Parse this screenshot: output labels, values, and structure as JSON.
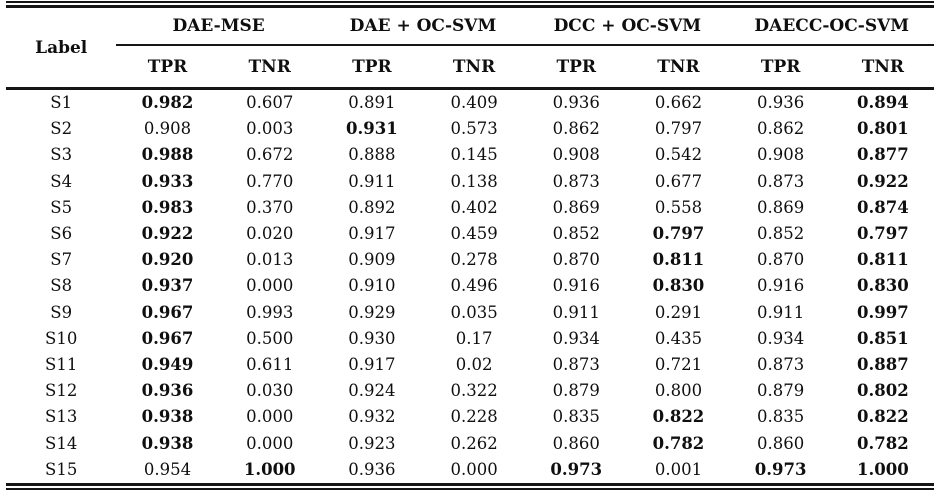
{
  "table": {
    "label_header": "Label",
    "groups": [
      {
        "label": "DAE-MSE",
        "sub": [
          "TPR",
          "TNR"
        ]
      },
      {
        "label": "DAE + OC-SVM",
        "sub": [
          "TPR",
          "TNR"
        ]
      },
      {
        "label": "DCC + OC-SVM",
        "sub": [
          "TPR",
          "TNR"
        ]
      },
      {
        "label": "DAECC-OC-SVM",
        "sub": [
          "TPR",
          "TNR"
        ]
      }
    ],
    "rows": [
      {
        "label": "S1",
        "values": [
          "0.982",
          "0.607",
          "0.891",
          "0.409",
          "0.936",
          "0.662",
          "0.936",
          "0.894"
        ],
        "bold": [
          true,
          false,
          false,
          false,
          false,
          false,
          false,
          true
        ]
      },
      {
        "label": "S2",
        "values": [
          "0.908",
          "0.003",
          "0.931",
          "0.573",
          "0.862",
          "0.797",
          "0.862",
          "0.801"
        ],
        "bold": [
          false,
          false,
          true,
          false,
          false,
          false,
          false,
          true
        ]
      },
      {
        "label": "S3",
        "values": [
          "0.988",
          "0.672",
          "0.888",
          "0.145",
          "0.908",
          "0.542",
          "0.908",
          "0.877"
        ],
        "bold": [
          true,
          false,
          false,
          false,
          false,
          false,
          false,
          true
        ]
      },
      {
        "label": "S4",
        "values": [
          "0.933",
          "0.770",
          "0.911",
          "0.138",
          "0.873",
          "0.677",
          "0.873",
          "0.922"
        ],
        "bold": [
          true,
          false,
          false,
          false,
          false,
          false,
          false,
          true
        ]
      },
      {
        "label": "S5",
        "values": [
          "0.983",
          "0.370",
          "0.892",
          "0.402",
          "0.869",
          "0.558",
          "0.869",
          "0.874"
        ],
        "bold": [
          true,
          false,
          false,
          false,
          false,
          false,
          false,
          true
        ]
      },
      {
        "label": "S6",
        "values": [
          "0.922",
          "0.020",
          "0.917",
          "0.459",
          "0.852",
          "0.797",
          "0.852",
          "0.797"
        ],
        "bold": [
          true,
          false,
          false,
          false,
          false,
          true,
          false,
          true
        ]
      },
      {
        "label": "S7",
        "values": [
          "0.920",
          "0.013",
          "0.909",
          "0.278",
          "0.870",
          "0.811",
          "0.870",
          "0.811"
        ],
        "bold": [
          true,
          false,
          false,
          false,
          false,
          true,
          false,
          true
        ]
      },
      {
        "label": "S8",
        "values": [
          "0.937",
          "0.000",
          "0.910",
          "0.496",
          "0.916",
          "0.830",
          "0.916",
          "0.830"
        ],
        "bold": [
          true,
          false,
          false,
          false,
          false,
          true,
          false,
          true
        ]
      },
      {
        "label": "S9",
        "values": [
          "0.967",
          "0.993",
          "0.929",
          "0.035",
          "0.911",
          "0.291",
          "0.911",
          "0.997"
        ],
        "bold": [
          true,
          false,
          false,
          false,
          false,
          false,
          false,
          true
        ]
      },
      {
        "label": "S10",
        "values": [
          "0.967",
          "0.500",
          "0.930",
          "0.17",
          "0.934",
          "0.435",
          "0.934",
          "0.851"
        ],
        "bold": [
          true,
          false,
          false,
          false,
          false,
          false,
          false,
          true
        ]
      },
      {
        "label": "S11",
        "values": [
          "0.949",
          "0.611",
          "0.917",
          "0.02",
          "0.873",
          "0.721",
          "0.873",
          "0.887"
        ],
        "bold": [
          true,
          false,
          false,
          false,
          false,
          false,
          false,
          true
        ]
      },
      {
        "label": "S12",
        "values": [
          "0.936",
          "0.030",
          "0.924",
          "0.322",
          "0.879",
          "0.800",
          "0.879",
          "0.802"
        ],
        "bold": [
          true,
          false,
          false,
          false,
          false,
          false,
          false,
          true
        ]
      },
      {
        "label": "S13",
        "values": [
          "0.938",
          "0.000",
          "0.932",
          "0.228",
          "0.835",
          "0.822",
          "0.835",
          "0.822"
        ],
        "bold": [
          true,
          false,
          false,
          false,
          false,
          true,
          false,
          true
        ]
      },
      {
        "label": "S14",
        "values": [
          "0.938",
          "0.000",
          "0.923",
          "0.262",
          "0.860",
          "0.782",
          "0.860",
          "0.782"
        ],
        "bold": [
          true,
          false,
          false,
          false,
          false,
          true,
          false,
          true
        ]
      },
      {
        "label": "S15",
        "values": [
          "0.954",
          "1.000",
          "0.936",
          "0.000",
          "0.973",
          "0.001",
          "0.973",
          "1.000"
        ],
        "bold": [
          false,
          true,
          false,
          false,
          true,
          false,
          true,
          true
        ]
      }
    ]
  },
  "colors": {
    "text": "#0f0f0f",
    "rule": "#151515",
    "background": "#ffffff"
  }
}
